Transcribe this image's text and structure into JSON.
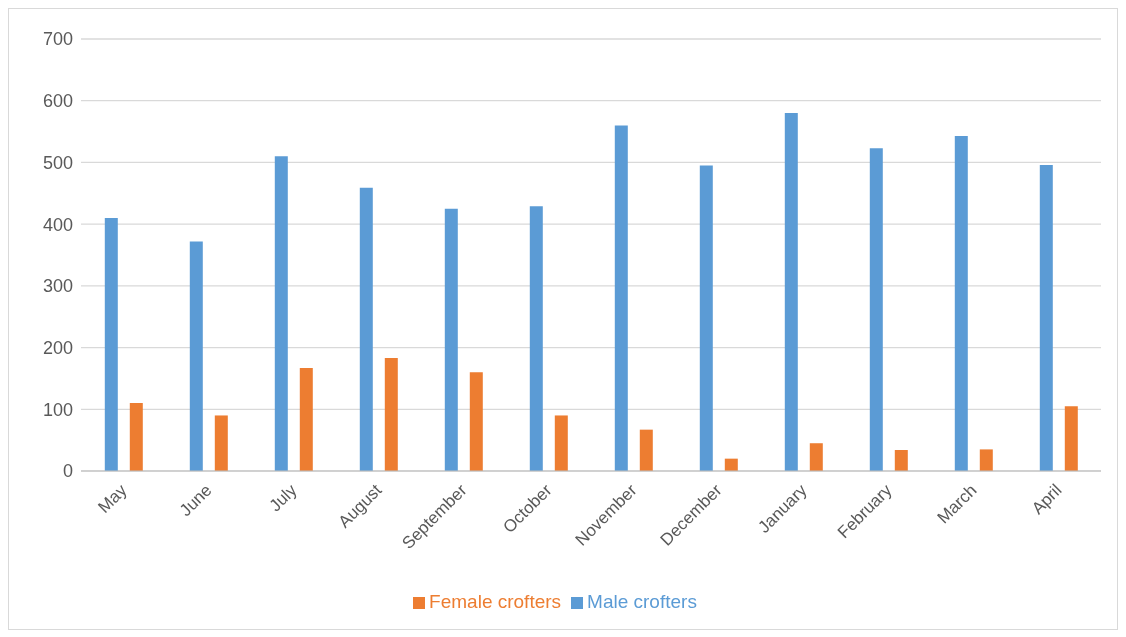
{
  "chart_data": {
    "type": "bar",
    "categories": [
      "May",
      "June",
      "July",
      "August",
      "September",
      "October",
      "November",
      "December",
      "January",
      "February",
      "March",
      "April"
    ],
    "series": [
      {
        "name": "Male crofters",
        "color": "#5b9bd5",
        "values": [
          410,
          372,
          510,
          459,
          425,
          429,
          560,
          495,
          580,
          523,
          543,
          496
        ]
      },
      {
        "name": "Female crofters",
        "color": "#ed7d31",
        "values": [
          110,
          90,
          167,
          183,
          160,
          90,
          67,
          20,
          45,
          34,
          35,
          105
        ]
      }
    ],
    "ylim": [
      0,
      700
    ],
    "yticks": [
      0,
      100,
      200,
      300,
      400,
      500,
      600,
      700
    ],
    "grid": "y",
    "legend": "bottom"
  }
}
